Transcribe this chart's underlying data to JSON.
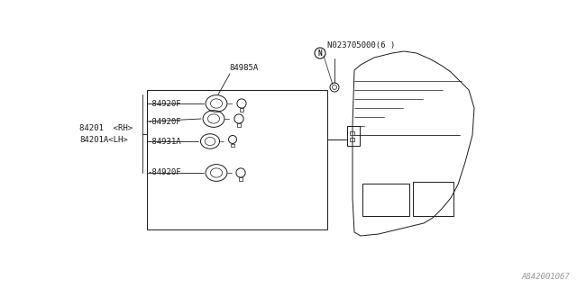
{
  "bg_color": "#ffffff",
  "line_color": "#1a1a1a",
  "fig_width": 6.4,
  "fig_height": 3.2,
  "dpi": 100,
  "part_number_label": "N023705000(6 )",
  "label_84985A": "84985A",
  "label_84920F_1": "-84920F",
  "label_84920F_2": "-84920F",
  "label_84920F_3": "-84920F",
  "label_84931A": "-84931A",
  "label_84201": "84201  <RH>",
  "label_84201A": "84201A<LH>",
  "watermark": "A842001067"
}
